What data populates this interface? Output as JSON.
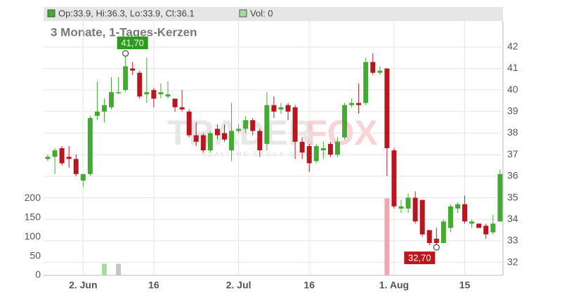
{
  "chart_data": {
    "type": "candlestick",
    "title": "3 Monate, 1-Tages-Kerzen",
    "legend": {
      "ohlc": "Op:33.9, Hi:36.3, Lo:33.9, Cl:36.1",
      "volume": "Vol: 0"
    },
    "watermark": {
      "parts": [
        "TRADER",
        "FOX"
      ],
      "subtitle": "REALTIME STOCK SCREENING"
    },
    "categories": [
      null,
      null,
      null,
      null,
      null,
      "2. Jun",
      null,
      null,
      null,
      null,
      null,
      null,
      null,
      null,
      null,
      "16",
      null,
      null,
      null,
      null,
      null,
      null,
      null,
      null,
      null,
      null,
      null,
      "2. Jul",
      null,
      null,
      null,
      null,
      null,
      null,
      null,
      null,
      null,
      "16",
      null,
      null,
      null,
      null,
      null,
      null,
      null,
      null,
      null,
      null,
      null,
      "1. Aug",
      null,
      null,
      null,
      null,
      null,
      null,
      null,
      null,
      null,
      "15",
      null,
      null,
      null,
      null,
      null
    ],
    "open": [
      36.8,
      36.9,
      37.3,
      36.9,
      36.8,
      35.8,
      36.1,
      38.8,
      39.0,
      39.2,
      39.9,
      40.0,
      41.0,
      40.8,
      39.8,
      40.0,
      39.8,
      39.7,
      39.6,
      39.2,
      39.0,
      37.9,
      37.9,
      37.2,
      38.2,
      38.0,
      37.2,
      38.1,
      38.2,
      38.6,
      38.1,
      37.5,
      39.3,
      39.1,
      39.3,
      39.2,
      37.6,
      37.4,
      36.7,
      37.2,
      37.5,
      37.0,
      37.8,
      39.3,
      39.4,
      39.4,
      41.3,
      40.8,
      41.0,
      37.2,
      34.5,
      34.5,
      35.0,
      34.9,
      33.5,
      33.1,
      32.9,
      33.6,
      34.5,
      34.7,
      33.8,
      33.8,
      33.7,
      33.4,
      33.9
    ],
    "high": [
      37.0,
      37.3,
      37.4,
      37.4,
      37.0,
      36.1,
      38.8,
      40.4,
      39.6,
      40.6,
      40.6,
      41.7,
      41.3,
      40.9,
      41.5,
      40.1,
      40.3,
      40.4,
      39.6,
      40.0,
      39.1,
      38.5,
      38.0,
      38.1,
      38.4,
      38.4,
      39.4,
      38.4,
      38.8,
      38.7,
      38.2,
      39.9,
      39.7,
      39.4,
      39.4,
      39.3,
      37.8,
      37.5,
      37.5,
      37.6,
      37.6,
      37.8,
      39.4,
      39.6,
      40.3,
      41.5,
      41.7,
      41.1,
      41.0,
      37.3,
      34.9,
      35.2,
      35.3,
      34.9,
      33.5,
      33.6,
      34.0,
      34.7,
      34.8,
      35.1,
      34.0,
      33.8,
      33.8,
      34.2,
      36.3
    ],
    "low": [
      36.7,
      36.1,
      36.5,
      36.4,
      36.0,
      35.5,
      36.0,
      38.6,
      38.5,
      39.1,
      39.8,
      39.9,
      40.7,
      39.6,
      39.4,
      39.2,
      39.6,
      39.6,
      39.0,
      39.0,
      37.8,
      37.4,
      37.1,
      37.1,
      37.7,
      37.6,
      36.7,
      38.0,
      38.0,
      37.9,
      36.9,
      37.2,
      38.7,
      38.9,
      38.6,
      36.8,
      36.8,
      36.2,
      36.6,
      36.8,
      36.9,
      36.9,
      37.7,
      39.2,
      38.9,
      39.3,
      40.7,
      40.7,
      36.0,
      34.5,
      34.3,
      34.3,
      33.8,
      33.2,
      32.8,
      32.7,
      32.9,
      33.4,
      34.3,
      33.8,
      33.6,
      33.6,
      33.1,
      33.3,
      33.9
    ],
    "close": [
      36.9,
      37.2,
      36.6,
      36.8,
      36.1,
      36.1,
      38.7,
      39.0,
      39.3,
      39.9,
      39.9,
      41.1,
      40.9,
      39.7,
      39.9,
      39.6,
      39.9,
      39.8,
      39.2,
      39.1,
      37.9,
      37.6,
      37.2,
      38.0,
      37.9,
      37.7,
      38.1,
      38.2,
      38.6,
      38.1,
      37.2,
      39.3,
      39.0,
      39.2,
      39.0,
      37.6,
      37.1,
      36.6,
      37.4,
      37.3,
      37.0,
      37.6,
      39.3,
      39.4,
      39.3,
      41.3,
      40.8,
      40.9,
      37.3,
      34.6,
      34.6,
      35.0,
      33.9,
      33.3,
      32.9,
      32.9,
      33.9,
      34.6,
      34.7,
      33.9,
      33.9,
      33.6,
      33.3,
      33.8,
      36.1
    ],
    "volume": [
      0,
      0,
      0,
      0,
      0,
      0,
      0,
      0,
      30,
      0,
      30,
      0,
      0,
      0,
      0,
      0,
      0,
      0,
      0,
      0,
      0,
      0,
      0,
      0,
      0,
      0,
      0,
      0,
      0,
      0,
      0,
      0,
      0,
      0,
      0,
      0,
      0,
      0,
      0,
      0,
      0,
      0,
      0,
      0,
      0,
      0,
      0,
      0,
      200,
      0,
      0,
      0,
      0,
      0,
      0,
      0,
      0,
      0,
      0,
      0,
      0,
      0,
      0,
      0,
      0
    ],
    "up_color": "#46a935",
    "down_color": "#b8171f",
    "volume_colors": {
      "up": "#a6dba0",
      "down": "#f2a7b0",
      "flat": "#c4c4c4"
    },
    "ylim": [
      31.4,
      43.2
    ],
    "yticks": [
      32,
      33,
      34,
      35,
      36,
      37,
      38,
      39,
      40,
      41,
      42
    ],
    "y2lim": [
      0,
      660
    ],
    "y2ticks": [
      0,
      50,
      100,
      150,
      200
    ],
    "grid": true,
    "annotations": [
      {
        "label": "41,70",
        "value": 41.7,
        "category_index": 11,
        "color": "#2e9a1e"
      },
      {
        "label": "32,70",
        "value": 32.7,
        "category_index": 55,
        "color": "#c0141c"
      }
    ]
  }
}
